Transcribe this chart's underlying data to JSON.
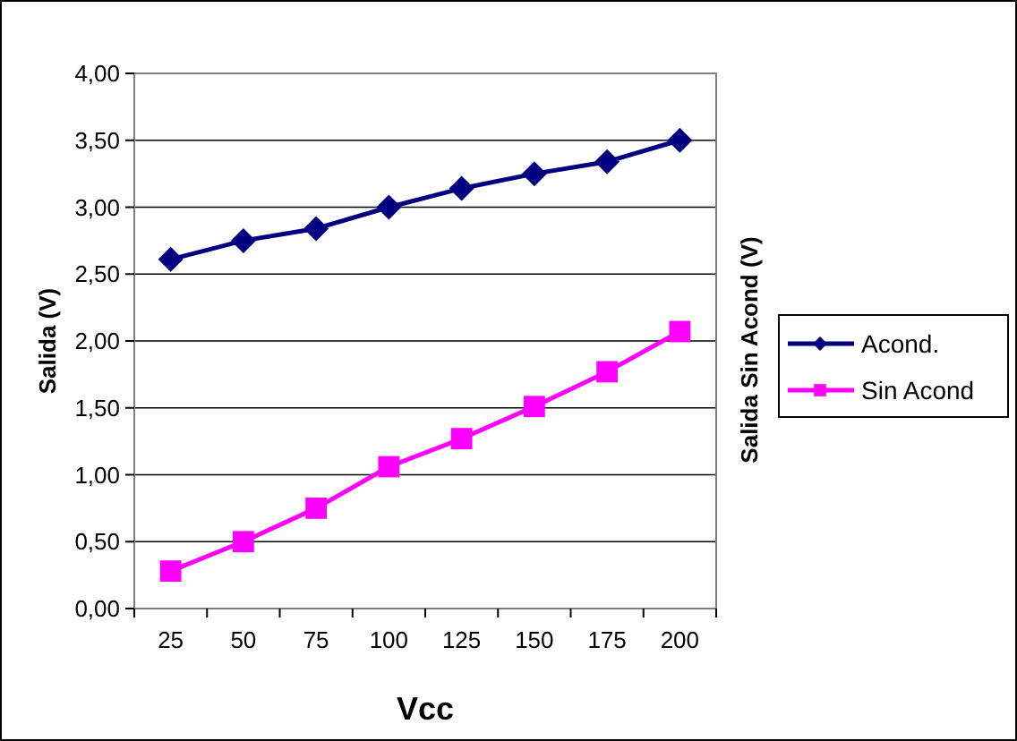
{
  "chart_data": {
    "type": "line",
    "xlabel": "Vcc",
    "ylabel": "Salida (V)",
    "y2label": "Salida Sin Acond (V)",
    "categories": [
      "25",
      "50",
      "75",
      "100",
      "125",
      "150",
      "175",
      "200"
    ],
    "series": [
      {
        "name": "Acond.",
        "color": "#000080",
        "marker": "diamond",
        "values": [
          2.61,
          2.75,
          2.84,
          3.0,
          3.14,
          3.25,
          3.34,
          3.5
        ]
      },
      {
        "name": "Sin Acond",
        "color": "#ff00ff",
        "marker": "square",
        "values": [
          0.28,
          0.5,
          0.75,
          1.06,
          1.27,
          1.51,
          1.77,
          2.07
        ]
      }
    ],
    "ylim": [
      0,
      4
    ],
    "yticks": [
      {
        "value": 0,
        "label": "0,00"
      },
      {
        "value": 0.5,
        "label": "0,50"
      },
      {
        "value": 1,
        "label": "1,00"
      },
      {
        "value": 1.5,
        "label": "1,50"
      },
      {
        "value": 2,
        "label": "2,00"
      },
      {
        "value": 2.5,
        "label": "2,50"
      },
      {
        "value": 3,
        "label": "3,00"
      },
      {
        "value": 3.5,
        "label": "3,50"
      },
      {
        "value": 4,
        "label": "4,00"
      }
    ],
    "grid": "y",
    "legend": "right",
    "line_style": "solid"
  }
}
